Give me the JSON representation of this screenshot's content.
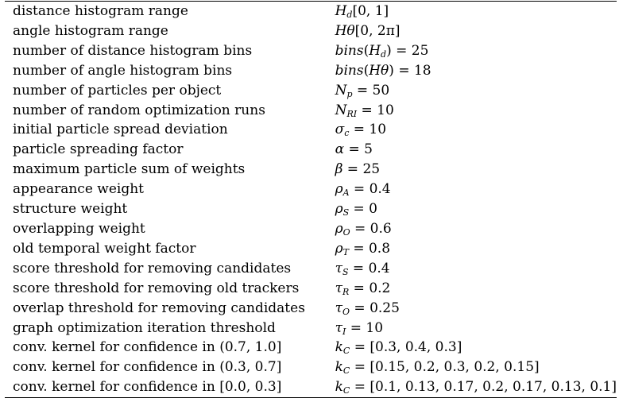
{
  "parameters": [
    {
      "description": "distance histogram range",
      "value": "H_d[0, 1]"
    },
    {
      "description": "angle histogram range",
      "value": "H_θ[0, 2π]"
    },
    {
      "description": "number of distance histogram bins",
      "value": "bins(H_d) = 25"
    },
    {
      "description": "number of angle histogram bins",
      "value": "bins(H_θ) = 18"
    },
    {
      "description": "number of particles per object",
      "value": "N_p = 50"
    },
    {
      "description": "number of random optimization runs",
      "value": "N_RI = 10"
    },
    {
      "description": "initial particle spread deviation",
      "value": "σ_c = 10"
    },
    {
      "description": "particle spreading factor",
      "value": "α = 5"
    },
    {
      "description": "maximum particle sum of weights",
      "value": "β = 25"
    },
    {
      "description": "appearance weight",
      "value": "ρ_A = 0.4"
    },
    {
      "description": "structure weight",
      "value": "ρ_S = 0"
    },
    {
      "description": "overlapping weight",
      "value": "ρ_O = 0.6"
    },
    {
      "description": "old temporal weight factor",
      "value": "ρ_T = 0.8"
    },
    {
      "description": "score threshold for removing candidates",
      "value": "τ_S = 0.4"
    },
    {
      "description": "score threshold for removing old trackers",
      "value": "τ_R = 0.2"
    },
    {
      "description": "overlap threshold for removing candidates",
      "value": "τ_O = 0.25"
    },
    {
      "description": "graph optimization iteration threshold",
      "value": "τ_I = 10"
    },
    {
      "description": "conv. kernel for confidence in (0.7, 1.0]",
      "value": "k_C = [0.3, 0.4, 0.3]"
    },
    {
      "description": "conv. kernel for confidence in (0.3, 0.7]",
      "value": "k_C = [0.15, 0.2, 0.3, 0.2, 0.15]"
    },
    {
      "description": "conv. kernel for confidence in [0.0, 0.3]",
      "value": "k_C = [0.1, 0.13, 0.17, 0.2, 0.17, 0.13, 0.1]"
    }
  ]
}
